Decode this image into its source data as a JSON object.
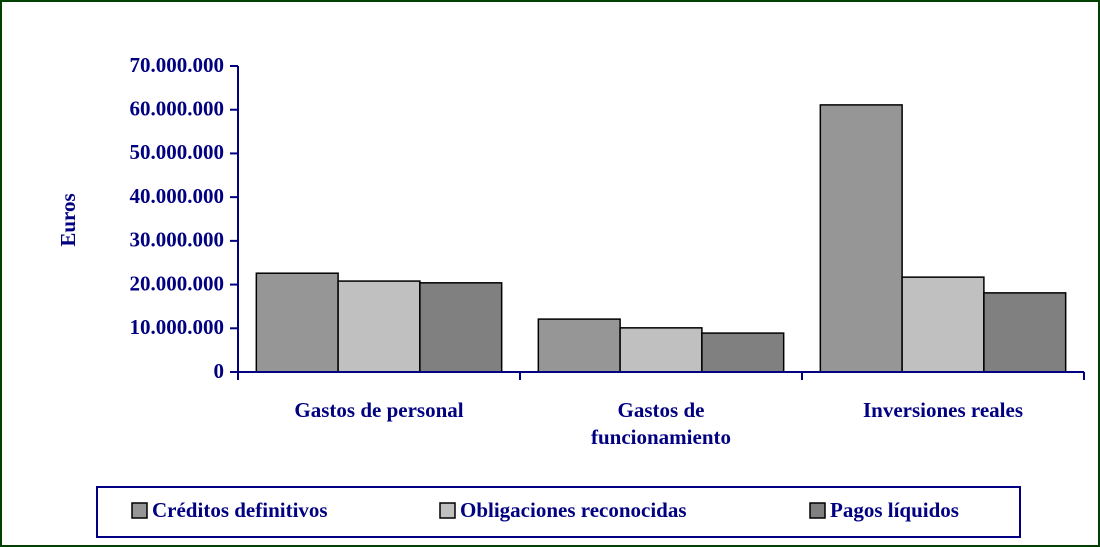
{
  "chart_data": {
    "type": "bar",
    "ylabel": "Euros",
    "categories": [
      "Gastos de personal",
      "Gastos de funcionamiento",
      "Inversiones reales"
    ],
    "series": [
      {
        "name": "Créditos definitivos",
        "color": "#969696",
        "values": [
          22600000,
          12100000,
          61100000
        ]
      },
      {
        "name": "Obligaciones reconocidas",
        "color": "#c0c0c0",
        "values": [
          20800000,
          10100000,
          21700000
        ]
      },
      {
        "name": "Pagos líquidos",
        "color": "#808080",
        "values": [
          20400000,
          8900000,
          18100000
        ]
      }
    ],
    "ylim": [
      0,
      70000000
    ],
    "yticks": [
      0,
      {
        "value": 10000000,
        "label": "10.000.000"
      },
      {
        "value": 20000000,
        "label": "20.000.000"
      },
      {
        "value": 30000000,
        "label": "30.000.000"
      },
      {
        "value": 40000000,
        "label": "40.000.000"
      },
      {
        "value": 50000000,
        "label": "50.000.000"
      },
      {
        "value": 60000000,
        "label": "60.000.000"
      },
      {
        "value": 70000000,
        "label": "70.000.000"
      }
    ],
    "grid": false,
    "legend": "bottom"
  }
}
